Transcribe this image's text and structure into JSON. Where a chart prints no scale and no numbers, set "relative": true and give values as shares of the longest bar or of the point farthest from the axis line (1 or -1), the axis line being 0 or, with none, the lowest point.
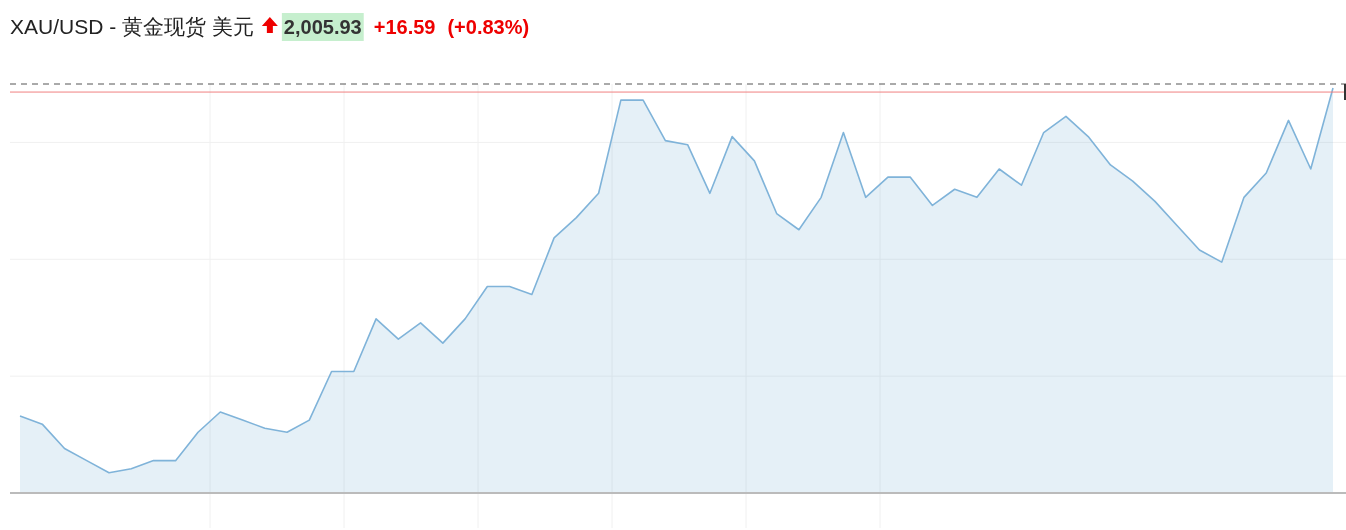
{
  "chart_data": {
    "type": "area",
    "title": "XAU/USD - 黄金现货 美元",
    "annotations": [
      "2,005.93",
      "+16.59",
      "(+0.83%)"
    ],
    "relative": true,
    "grid": true,
    "categories": [
      null,
      null,
      null,
      null,
      null,
      null,
      null,
      null,
      null,
      null,
      null,
      null,
      null,
      null,
      null,
      null,
      null,
      null,
      null,
      null,
      null,
      null,
      null,
      null,
      null,
      null,
      null,
      null,
      null,
      null,
      null,
      null,
      null,
      null,
      null,
      null,
      null,
      null,
      null,
      null,
      null,
      null,
      null,
      null,
      null,
      null,
      null,
      null,
      null,
      null,
      null,
      null,
      null,
      null,
      null,
      null,
      null,
      null,
      null,
      null
    ],
    "series": [
      {
        "color": "#7fb3d9",
        "values": [
          0.19,
          0.17,
          0.11,
          0.08,
          0.05,
          0.06,
          0.08,
          0.08,
          0.15,
          0.2,
          0.18,
          0.16,
          0.15,
          0.18,
          0.3,
          0.3,
          0.43,
          0.38,
          0.42,
          0.37,
          0.43,
          0.51,
          0.51,
          0.49,
          0.63,
          0.68,
          0.74,
          0.97,
          0.97,
          0.87,
          0.86,
          0.74,
          0.88,
          0.82,
          0.69,
          0.65,
          0.73,
          0.89,
          0.73,
          0.78,
          0.78,
          0.71,
          0.75,
          0.73,
          0.8,
          0.76,
          0.89,
          0.93,
          0.88,
          0.81,
          0.77,
          0.72,
          0.66,
          0.6,
          0.57,
          0.73,
          0.79,
          0.92,
          0.8,
          1
        ]
      }
    ],
    "ref_lines": [
      {
        "axis": "y",
        "value": 0.99,
        "label": null,
        "color": "#f08080"
      }
    ]
  }
}
